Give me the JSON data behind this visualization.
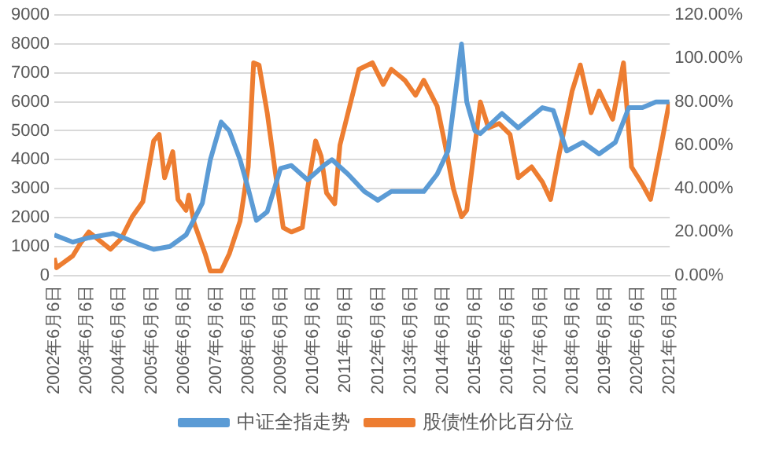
{
  "chart_data": {
    "type": "line",
    "series": [
      {
        "name": "中证全指走势",
        "color": "#5b9bd5",
        "axis": "y",
        "x": [
          "2002-06-06",
          "2003-01",
          "2003-07",
          "2004-04",
          "2005-01",
          "2005-07",
          "2006-01",
          "2006-07",
          "2007-01",
          "2007-04",
          "2007-08",
          "2007-11",
          "2008-03",
          "2008-06",
          "2008-09",
          "2009-01",
          "2009-06",
          "2009-10",
          "2010-04",
          "2010-10",
          "2011-01",
          "2011-07",
          "2012-01",
          "2012-06",
          "2012-11",
          "2013-11",
          "2014-04",
          "2014-08",
          "2014-11",
          "2015-01",
          "2015-03",
          "2015-06",
          "2015-08",
          "2016-04",
          "2016-10",
          "2017-07",
          "2017-11",
          "2018-04",
          "2018-10",
          "2019-04",
          "2019-10",
          "2020-03",
          "2020-08",
          "2021-01",
          "2021-06"
        ],
        "values": [
          1400,
          1150,
          1300,
          1450,
          1100,
          900,
          1000,
          1400,
          2500,
          4000,
          5300,
          5000,
          4000,
          3000,
          1900,
          2200,
          3700,
          3800,
          3300,
          3800,
          4000,
          3500,
          2900,
          2600,
          2900,
          2900,
          3500,
          4300,
          6500,
          8000,
          6000,
          5000,
          4900,
          5600,
          5100,
          5800,
          5700,
          4300,
          4600,
          4200,
          4600,
          5800,
          5800,
          6000,
          6000
        ]
      },
      {
        "name": "股债性价比百分位",
        "color": "#ed7d31",
        "axis": "y2",
        "x": [
          "2002-06-06",
          "2002-07",
          "2003-01",
          "2003-04",
          "2003-07",
          "2003-10",
          "2004-03",
          "2004-07",
          "2004-11",
          "2005-03",
          "2005-07",
          "2005-09",
          "2005-11",
          "2006-02",
          "2006-04",
          "2006-07",
          "2006-08",
          "2006-10",
          "2007-02",
          "2007-04",
          "2007-08",
          "2007-11",
          "2008-03",
          "2008-06",
          "2008-08",
          "2008-10",
          "2009-01",
          "2009-04",
          "2009-07",
          "2009-10",
          "2010-02",
          "2010-04",
          "2010-07",
          "2010-09",
          "2010-11",
          "2011-02",
          "2011-04",
          "2011-08",
          "2011-11",
          "2012-04",
          "2012-08",
          "2012-11",
          "2013-04",
          "2013-08",
          "2013-11",
          "2014-04",
          "2014-07",
          "2014-10",
          "2015-01",
          "2015-03",
          "2015-06",
          "2015-08",
          "2015-11",
          "2016-03",
          "2016-07",
          "2016-10",
          "2017-03",
          "2017-07",
          "2017-10",
          "2018-01",
          "2018-06",
          "2018-09",
          "2019-01",
          "2019-04",
          "2019-09",
          "2020-01",
          "2020-04",
          "2020-08",
          "2020-11",
          "2021-03",
          "2021-06"
        ],
        "values": [
          8,
          3.5,
          9,
          15,
          20,
          17,
          12,
          17,
          27,
          34,
          62,
          65,
          45,
          57,
          35,
          30,
          37,
          24,
          10,
          2,
          2,
          10,
          25,
          50,
          98,
          97,
          75,
          48,
          22,
          20,
          22,
          40,
          62,
          55,
          38,
          33,
          60,
          80,
          95,
          98,
          88,
          95,
          90,
          83,
          90,
          78,
          60,
          40,
          27,
          30,
          60,
          80,
          68,
          70,
          65,
          45,
          50,
          43,
          35,
          55,
          85,
          97,
          75,
          85,
          72,
          98,
          50,
          42,
          35,
          60,
          80
        ]
      }
    ],
    "xlim": [
      "2002-06-06",
      "2021-06-06"
    ],
    "xticks": [
      {
        "value": "2002-06-06",
        "label": "2002年6月6日"
      },
      {
        "value": "2003-06-06",
        "label": "2003年6月6日"
      },
      {
        "value": "2004-06-06",
        "label": "2004年6月6日"
      },
      {
        "value": "2005-06-06",
        "label": "2005年6月6日"
      },
      {
        "value": "2006-06-06",
        "label": "2006年6月6日"
      },
      {
        "value": "2007-06-06",
        "label": "2007年6月6日"
      },
      {
        "value": "2008-06-06",
        "label": "2008年6月6日"
      },
      {
        "value": "2009-06-06",
        "label": "2009年6月6日"
      },
      {
        "value": "2010-06-06",
        "label": "2010年6月6日"
      },
      {
        "value": "2011-06-06",
        "label": "2011年6月6日"
      },
      {
        "value": "2012-06-06",
        "label": "2012年6月6日"
      },
      {
        "value": "2013-06-06",
        "label": "2013年6月6日"
      },
      {
        "value": "2014-06-06",
        "label": "2014年6月6日"
      },
      {
        "value": "2015-06-06",
        "label": "2015年6月6日"
      },
      {
        "value": "2016-06-06",
        "label": "2016年6月6日"
      },
      {
        "value": "2017-06-06",
        "label": "2017年6月6日"
      },
      {
        "value": "2018-06-06",
        "label": "2018年6月6日"
      },
      {
        "value": "2019-06-06",
        "label": "2019年6月6日"
      },
      {
        "value": "2020-06-06",
        "label": "2020年6月6日"
      },
      {
        "value": "2021-06-06",
        "label": "2021年6月6日"
      }
    ],
    "ylim": [
      0,
      9000
    ],
    "yticks": [
      0,
      1000,
      2000,
      3000,
      4000,
      5000,
      6000,
      7000,
      8000,
      9000
    ],
    "y2lim": [
      0,
      120
    ],
    "y2ticks": [
      {
        "value": 0,
        "label": "0.00%"
      },
      {
        "value": 20,
        "label": "20.00%"
      },
      {
        "value": 40,
        "label": "40.00%"
      },
      {
        "value": 60,
        "label": "60.00%"
      },
      {
        "value": 80,
        "label": "80.00%"
      },
      {
        "value": 100,
        "label": "100.00%"
      },
      {
        "value": 120,
        "label": "120.00%"
      }
    ],
    "grid": "y",
    "legend": "bottom",
    "marker": "none",
    "line_style": "solid"
  }
}
